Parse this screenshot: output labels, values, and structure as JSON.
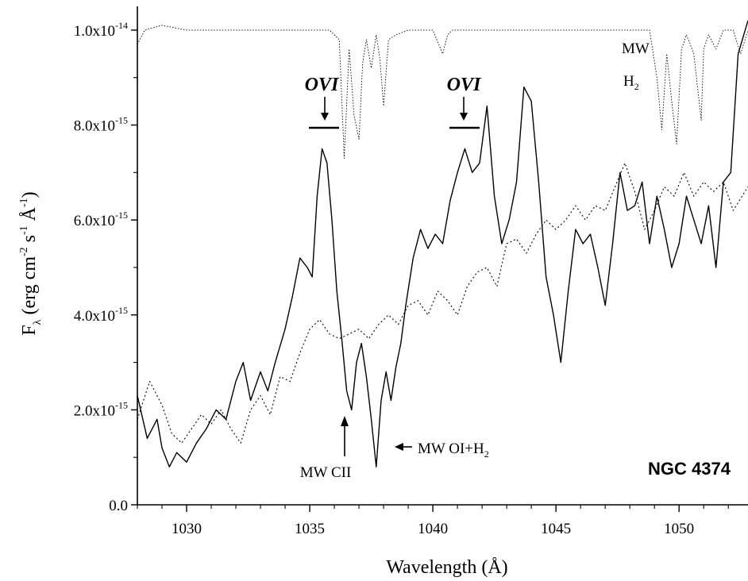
{
  "chart_data": {
    "type": "line",
    "xlabel": "Wavelength (Å)",
    "ylabel": {
      "main": "F",
      "sub": "λ",
      "unit_open": " (erg cm",
      "exp1": "-2",
      "mid1": " s",
      "exp2": "-1",
      "mid2": " Å",
      "exp3": "-1",
      "close": ")"
    },
    "xlim": [
      1028,
      1052.8
    ],
    "ylim": [
      0,
      1.05e-14
    ],
    "x_ticks": [
      1030,
      1035,
      1040,
      1045,
      1050
    ],
    "x_tick_labels": [
      "1030",
      "1035",
      "1040",
      "1045",
      "1050"
    ],
    "y_ticks": [
      {
        "value": 0,
        "base": "0.0",
        "exp": ""
      },
      {
        "value": 2e-15,
        "base": "2.0x10",
        "exp": "-15"
      },
      {
        "value": 4e-15,
        "base": "4.0x10",
        "exp": "-15"
      },
      {
        "value": 6e-15,
        "base": "6.0x10",
        "exp": "-15"
      },
      {
        "value": 8e-15,
        "base": "8.0x10",
        "exp": "-15"
      },
      {
        "value": 1e-14,
        "base": "1.0x10",
        "exp": "-14"
      }
    ],
    "grid": false,
    "object_label": "NGC 4374",
    "series": [
      {
        "style": "solid",
        "x": [
          1028.0,
          1028.4,
          1028.8,
          1029.0,
          1029.3,
          1029.6,
          1030.0,
          1030.4,
          1030.8,
          1031.2,
          1031.6,
          1032.0,
          1032.3,
          1032.6,
          1033.0,
          1033.3,
          1033.6,
          1034.0,
          1034.3,
          1034.6,
          1034.9,
          1035.1,
          1035.3,
          1035.5,
          1035.7,
          1035.9,
          1036.1,
          1036.3,
          1036.5,
          1036.7,
          1036.9,
          1037.1,
          1037.3,
          1037.5,
          1037.7,
          1037.9,
          1038.1,
          1038.3,
          1038.5,
          1038.7,
          1038.9,
          1039.2,
          1039.5,
          1039.8,
          1040.1,
          1040.4,
          1040.7,
          1041.0,
          1041.3,
          1041.6,
          1041.9,
          1042.2,
          1042.5,
          1042.8,
          1043.1,
          1043.4,
          1043.7,
          1044.0,
          1044.3,
          1044.6,
          1044.9,
          1045.2,
          1045.5,
          1045.8,
          1046.1,
          1046.4,
          1046.7,
          1047.0,
          1047.3,
          1047.6,
          1047.9,
          1048.2,
          1048.5,
          1048.8,
          1049.1,
          1049.4,
          1049.7,
          1050.0,
          1050.3,
          1050.6,
          1050.9,
          1051.2,
          1051.5,
          1051.8,
          1052.1,
          1052.4,
          1052.8
        ],
        "y": [
          2.3e-15,
          1.4e-15,
          1.8e-15,
          1.2e-15,
          8e-16,
          1.1e-15,
          9e-16,
          1.3e-15,
          1.6e-15,
          2e-15,
          1.8e-15,
          2.6e-15,
          3e-15,
          2.2e-15,
          2.8e-15,
          2.4e-15,
          3e-15,
          3.7e-15,
          4.4e-15,
          5.2e-15,
          5e-15,
          4.8e-15,
          6.5e-15,
          7.5e-15,
          7.2e-15,
          6e-15,
          4.5e-15,
          3.5e-15,
          2.4e-15,
          2e-15,
          3e-15,
          3.4e-15,
          2.7e-15,
          1.8e-15,
          8e-16,
          2.2e-15,
          2.8e-15,
          2.2e-15,
          2.9e-15,
          3.4e-15,
          4.2e-15,
          5.2e-15,
          5.8e-15,
          5.4e-15,
          5.7e-15,
          5.5e-15,
          6.4e-15,
          7e-15,
          7.5e-15,
          7e-15,
          7.2e-15,
          8.4e-15,
          6.5e-15,
          5.5e-15,
          6e-15,
          6.8e-15,
          8.8e-15,
          8.5e-15,
          6.8e-15,
          4.8e-15,
          4e-15,
          3e-15,
          4.5e-15,
          5.8e-15,
          5.5e-15,
          5.7e-15,
          5e-15,
          4.2e-15,
          5.5e-15,
          7e-15,
          6.2e-15,
          6.3e-15,
          6.8e-15,
          5.5e-15,
          6.5e-15,
          5.8e-15,
          5e-15,
          5.5e-15,
          6.5e-15,
          6e-15,
          5.5e-15,
          6.3e-15,
          5e-15,
          6.8e-15,
          7e-15,
          9.5e-15,
          1.02e-14
        ]
      },
      {
        "style": "dotted",
        "x": [
          1028.0,
          1028.5,
          1029.0,
          1029.4,
          1029.8,
          1030.2,
          1030.6,
          1031.0,
          1031.4,
          1031.8,
          1032.2,
          1032.6,
          1033.0,
          1033.4,
          1033.8,
          1034.2,
          1034.6,
          1035.0,
          1035.4,
          1035.8,
          1036.2,
          1036.6,
          1037.0,
          1037.4,
          1037.8,
          1038.2,
          1038.6,
          1039.0,
          1039.4,
          1039.8,
          1040.2,
          1040.6,
          1041.0,
          1041.4,
          1041.8,
          1042.2,
          1042.6,
          1043.0,
          1043.4,
          1043.8,
          1044.2,
          1044.6,
          1045.0,
          1045.4,
          1045.8,
          1046.2,
          1046.6,
          1047.0,
          1047.4,
          1047.8,
          1048.2,
          1048.6,
          1049.0,
          1049.4,
          1049.8,
          1050.2,
          1050.6,
          1051.0,
          1051.4,
          1051.8,
          1052.2,
          1052.8
        ],
        "y": [
          1.8e-15,
          2.6e-15,
          2.1e-15,
          1.5e-15,
          1.3e-15,
          1.6e-15,
          1.9e-15,
          1.7e-15,
          2e-15,
          1.6e-15,
          1.3e-15,
          2e-15,
          2.3e-15,
          1.9e-15,
          2.7e-15,
          2.6e-15,
          3.2e-15,
          3.7e-15,
          3.9e-15,
          3.6e-15,
          3.5e-15,
          3.6e-15,
          3.7e-15,
          3.5e-15,
          3.8e-15,
          4e-15,
          3.8e-15,
          4.2e-15,
          4.3e-15,
          4e-15,
          4.5e-15,
          4.3e-15,
          4e-15,
          4.6e-15,
          4.9e-15,
          5e-15,
          4.6e-15,
          5.5e-15,
          5.6e-15,
          5.3e-15,
          5.7e-15,
          6e-15,
          5.8e-15,
          6e-15,
          6.3e-15,
          6e-15,
          6.3e-15,
          6.2e-15,
          6.7e-15,
          7.2e-15,
          6.6e-15,
          5.8e-15,
          6.2e-15,
          6.7e-15,
          6.5e-15,
          7e-15,
          6.5e-15,
          6.8e-15,
          6.6e-15,
          6.8e-15,
          6.2e-15,
          6.7e-15
        ]
      },
      {
        "style": "thin-dotted",
        "x": [
          1028.0,
          1028.3,
          1029.0,
          1030.0,
          1031.0,
          1032.0,
          1033.0,
          1034.0,
          1035.0,
          1035.8,
          1036.2,
          1036.4,
          1036.6,
          1036.8,
          1037.0,
          1037.15,
          1037.3,
          1037.5,
          1037.7,
          1037.85,
          1038.0,
          1038.2,
          1038.5,
          1039.0,
          1039.5,
          1040.0,
          1040.4,
          1040.6,
          1040.8,
          1041.5,
          1042.0,
          1043.0,
          1044.0,
          1045.0,
          1046.0,
          1047.0,
          1048.0,
          1048.8,
          1049.1,
          1049.3,
          1049.5,
          1049.7,
          1049.9,
          1050.1,
          1050.3,
          1050.6,
          1050.9,
          1051.0,
          1051.2,
          1051.5,
          1051.8,
          1052.2,
          1052.5,
          1052.8
        ],
        "y": [
          9.7e-15,
          1e-14,
          1.01e-14,
          1e-14,
          1e-14,
          1e-14,
          1e-14,
          1e-14,
          1e-14,
          1e-14,
          9.8e-15,
          7.3e-15,
          9.6e-15,
          8.2e-15,
          7.7e-15,
          9.3e-15,
          9.8e-15,
          9.2e-15,
          9.9e-15,
          9.4e-15,
          8.4e-15,
          9.8e-15,
          9.9e-15,
          1e-14,
          1e-14,
          1e-14,
          9.5e-15,
          9.9e-15,
          1e-14,
          1e-14,
          1e-14,
          1e-14,
          1e-14,
          1e-14,
          1e-14,
          1e-14,
          1e-14,
          1e-14,
          9e-15,
          7.9e-15,
          9.5e-15,
          8.5e-15,
          7.6e-15,
          9.6e-15,
          9.9e-15,
          9.5e-15,
          8.1e-15,
          9.6e-15,
          9.9e-15,
          9.6e-15,
          1e-14,
          1e-14,
          9.5e-15,
          1e-14
        ]
      }
    ],
    "annotations": {
      "ovi_left": "OVI",
      "ovi_right": "OVI",
      "mw_top": "MW",
      "h2_main": "H",
      "h2_sub": "2",
      "mw_cii": "MW CII",
      "mw_oi_main": "MW OI+H",
      "mw_oi_sub": "2"
    }
  }
}
